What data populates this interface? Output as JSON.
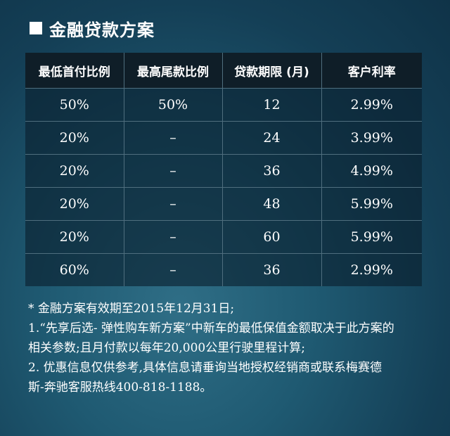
{
  "title": "金融贷款方案",
  "table": {
    "headers": [
      "最低首付比例",
      "最高尾款比例",
      "贷款期限 (月)",
      "客户利率"
    ],
    "rows": [
      [
        "50%",
        "50%",
        "12",
        "2.99%"
      ],
      [
        "20%",
        "–",
        "24",
        "3.99%"
      ],
      [
        "20%",
        "–",
        "36",
        "4.99%"
      ],
      [
        "20%",
        "–",
        "48",
        "5.99%"
      ],
      [
        "20%",
        "–",
        "60",
        "5.99%"
      ],
      [
        "60%",
        "–",
        "36",
        "2.99%"
      ]
    ]
  },
  "notes": [
    "* 金融方案有效期至2015年12月31日;",
    "1.“先享后选- 弹性购车新方案”中新车的最低保值金额取决于此方案的",
    "相关参数;且月付款以每年20,000公里行驶里程计算;",
    "2. 优惠信息仅供参考,具体信息请垂询当地授权经销商或联系梅赛德",
    "斯-奔驰客服热线400-818-1188。"
  ]
}
